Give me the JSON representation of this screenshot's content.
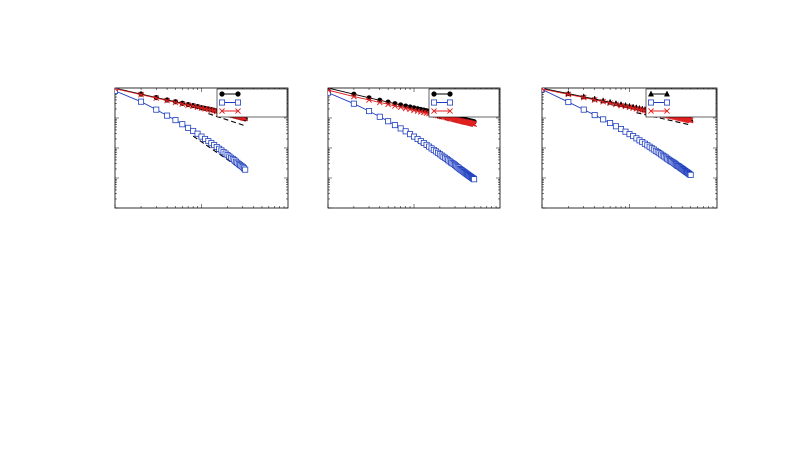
{
  "chart_data": [
    {
      "type": "line",
      "log_x": true,
      "log_y": true,
      "xlim": [
        1,
        100
      ],
      "ylim": [
        0.0001,
        1
      ],
      "grid": false,
      "legend": "top-right",
      "series": [
        {
          "marker": "circle",
          "color": "#000000",
          "x": [
            1,
            2,
            3,
            4,
            5,
            6,
            7,
            8,
            9,
            10,
            11,
            12,
            13,
            14,
            15,
            16,
            17,
            18,
            19,
            20,
            21,
            22,
            23,
            24,
            25,
            26,
            27,
            28,
            29,
            30,
            31,
            32
          ],
          "y": [
            0.98,
            0.63,
            0.48,
            0.4,
            0.35,
            0.31,
            0.28,
            0.26,
            0.24,
            0.22,
            0.21,
            0.2,
            0.19,
            0.18,
            0.17,
            0.16,
            0.155,
            0.148,
            0.142,
            0.136,
            0.131,
            0.126,
            0.122,
            0.118,
            0.114,
            0.111,
            0.108,
            0.105,
            0.102,
            0.099,
            0.097,
            0.094
          ]
        },
        {
          "marker": "square",
          "color": "#1f3fbf",
          "x": [
            1,
            2,
            3,
            4,
            5,
            6,
            7,
            8,
            9,
            10,
            11,
            12,
            13,
            14,
            15,
            16,
            17,
            18,
            19,
            20,
            21,
            22,
            23,
            24,
            25,
            26,
            27,
            28,
            29,
            30,
            31,
            32
          ],
          "y": [
            0.8,
            0.35,
            0.19,
            0.12,
            0.085,
            0.062,
            0.047,
            0.037,
            0.03,
            0.024,
            0.02,
            0.017,
            0.0145,
            0.0125,
            0.0108,
            0.0094,
            0.0083,
            0.0073,
            0.0065,
            0.0058,
            0.0052,
            0.0047,
            0.0043,
            0.0039,
            0.0035,
            0.0032,
            0.0029,
            0.0027,
            0.0025,
            0.0023,
            0.0021,
            0.0019
          ]
        },
        {
          "marker": "x",
          "color": "#e02020",
          "x": [
            1,
            2,
            3,
            4,
            5,
            6,
            7,
            8,
            9,
            10,
            11,
            12,
            13,
            14,
            15,
            16,
            17,
            18,
            19,
            20,
            21,
            22,
            23,
            24,
            25,
            26,
            27,
            28,
            29,
            30,
            31,
            32
          ],
          "y": [
            0.95,
            0.6,
            0.46,
            0.38,
            0.33,
            0.295,
            0.268,
            0.247,
            0.23,
            0.215,
            0.203,
            0.192,
            0.182,
            0.174,
            0.166,
            0.159,
            0.153,
            0.147,
            0.142,
            0.137,
            0.132,
            0.128,
            0.124,
            0.12,
            0.117,
            0.114,
            0.111,
            0.108,
            0.105,
            0.102,
            0.1,
            0.097
          ]
        }
      ],
      "guides": [
        {
          "x": [
            12,
            32
          ],
          "y": [
            0.14,
            0.055
          ]
        },
        {
          "x": [
            8,
            32
          ],
          "y": [
            0.025,
            0.0016
          ]
        }
      ]
    },
    {
      "type": "line",
      "log_x": true,
      "log_y": true,
      "xlim": [
        1,
        100
      ],
      "ylim": [
        0.0001,
        1
      ],
      "grid": false,
      "legend": "top-right",
      "series": [
        {
          "marker": "circle",
          "color": "#000000",
          "x": [
            1,
            2,
            3,
            4,
            5,
            6,
            7,
            8,
            9,
            10,
            11,
            12,
            13,
            14,
            15,
            16,
            17,
            18,
            19,
            20,
            21,
            22,
            23,
            24,
            25,
            26,
            27,
            28,
            29,
            30,
            31,
            32,
            33,
            34,
            35,
            36,
            37,
            38,
            39,
            40,
            41,
            42,
            43,
            44,
            45,
            46,
            47,
            48,
            49,
            50
          ],
          "y": [
            1.0,
            0.62,
            0.47,
            0.39,
            0.34,
            0.3,
            0.272,
            0.25,
            0.232,
            0.217,
            0.204,
            0.193,
            0.183,
            0.175,
            0.167,
            0.16,
            0.154,
            0.148,
            0.143,
            0.138,
            0.134,
            0.13,
            0.126,
            0.122,
            0.119,
            0.116,
            0.113,
            0.11,
            0.108,
            0.105,
            0.103,
            0.101,
            0.099,
            0.097,
            0.095,
            0.093,
            0.092,
            0.09,
            0.088,
            0.087,
            0.086,
            0.084,
            0.083,
            0.082,
            0.08,
            0.079,
            0.078,
            0.077,
            0.076,
            0.075
          ]
        },
        {
          "marker": "square",
          "color": "#1f3fbf",
          "x": [
            1,
            2,
            3,
            4,
            5,
            6,
            7,
            8,
            9,
            10,
            11,
            12,
            13,
            14,
            15,
            16,
            17,
            18,
            19,
            20,
            21,
            22,
            23,
            24,
            25,
            26,
            27,
            28,
            29,
            30,
            31,
            32,
            33,
            34,
            35,
            36,
            37,
            38,
            39,
            40,
            41,
            42,
            43,
            44,
            45,
            46,
            47,
            48,
            49,
            50
          ],
          "y": [
            0.7,
            0.3,
            0.17,
            0.11,
            0.078,
            0.058,
            0.045,
            0.036,
            0.029,
            0.024,
            0.02,
            0.017,
            0.0147,
            0.0127,
            0.0111,
            0.0097,
            0.0086,
            0.0077,
            0.0069,
            0.0062,
            0.0056,
            0.0051,
            0.0047,
            0.0043,
            0.0039,
            0.0036,
            0.0033,
            0.0031,
            0.0029,
            0.0027,
            0.0025,
            0.0023,
            0.0022,
            0.002,
            0.0019,
            0.0018,
            0.0017,
            0.0016,
            0.00152,
            0.00144,
            0.00137,
            0.0013,
            0.00124,
            0.00118,
            0.00113,
            0.00108,
            0.00103,
            0.00099,
            0.00095,
            0.00091
          ]
        },
        {
          "marker": "x",
          "color": "#e02020",
          "x": [
            1,
            2,
            3,
            4,
            5,
            6,
            7,
            8,
            9,
            10,
            11,
            12,
            13,
            14,
            15,
            16,
            17,
            18,
            19,
            20,
            21,
            22,
            23,
            24,
            25,
            26,
            27,
            28,
            29,
            30,
            31,
            32,
            33,
            34,
            35,
            36,
            37,
            38,
            39,
            40,
            41,
            42,
            43,
            44,
            45,
            46,
            47,
            48,
            49,
            50
          ],
          "y": [
            0.85,
            0.52,
            0.4,
            0.33,
            0.285,
            0.252,
            0.228,
            0.209,
            0.194,
            0.181,
            0.17,
            0.161,
            0.153,
            0.146,
            0.14,
            0.134,
            0.129,
            0.124,
            0.12,
            0.116,
            0.112,
            0.109,
            0.106,
            0.103,
            0.1,
            0.097,
            0.095,
            0.093,
            0.091,
            0.089,
            0.087,
            0.085,
            0.083,
            0.081,
            0.08,
            0.078,
            0.077,
            0.075,
            0.074,
            0.073,
            0.072,
            0.071,
            0.07,
            0.069,
            0.068,
            0.067,
            0.066,
            0.065,
            0.064,
            0.063
          ]
        }
      ],
      "guides": [
        {
          "x": [
            15,
            50
          ],
          "y": [
            0.12,
            0.052
          ]
        },
        {
          "x": [
            11,
            45
          ],
          "y": [
            0.016,
            0.0011
          ]
        }
      ]
    },
    {
      "type": "line",
      "log_x": true,
      "log_y": true,
      "xlim": [
        1,
        100
      ],
      "ylim": [
        0.0001,
        1
      ],
      "grid": false,
      "legend": "top-right",
      "series": [
        {
          "marker": "triangle",
          "color": "#000000",
          "x": [
            1,
            2,
            3,
            4,
            5,
            6,
            7,
            8,
            9,
            10,
            11,
            12,
            13,
            14,
            15,
            16,
            17,
            18,
            19,
            20,
            21,
            22,
            23,
            24,
            25,
            26,
            27,
            28,
            29,
            30,
            31,
            32,
            33,
            34,
            35,
            36,
            37,
            38,
            39,
            40,
            41,
            42,
            43,
            44,
            45,
            46,
            47,
            48,
            49,
            50
          ],
          "y": [
            0.98,
            0.65,
            0.51,
            0.43,
            0.375,
            0.335,
            0.305,
            0.281,
            0.262,
            0.246,
            0.232,
            0.22,
            0.209,
            0.2,
            0.192,
            0.184,
            0.178,
            0.172,
            0.166,
            0.161,
            0.156,
            0.152,
            0.148,
            0.144,
            0.14,
            0.137,
            0.134,
            0.131,
            0.128,
            0.125,
            0.123,
            0.12,
            0.118,
            0.116,
            0.114,
            0.112,
            0.11,
            0.108,
            0.106,
            0.105,
            0.103,
            0.101,
            0.1,
            0.099,
            0.097,
            0.096,
            0.095,
            0.093,
            0.092,
            0.091
          ]
        },
        {
          "marker": "square",
          "color": "#1f3fbf",
          "x": [
            1,
            2,
            3,
            4,
            5,
            6,
            7,
            8,
            9,
            10,
            11,
            12,
            13,
            14,
            15,
            16,
            17,
            18,
            19,
            20,
            21,
            22,
            23,
            24,
            25,
            26,
            27,
            28,
            29,
            30,
            31,
            32,
            33,
            34,
            35,
            36,
            37,
            38,
            39,
            40,
            41,
            42,
            43,
            44,
            45,
            46,
            47,
            48,
            49,
            50
          ],
          "y": [
            0.9,
            0.34,
            0.19,
            0.125,
            0.09,
            0.068,
            0.053,
            0.043,
            0.035,
            0.029,
            0.025,
            0.021,
            0.018,
            0.0158,
            0.0139,
            0.0123,
            0.011,
            0.0098,
            0.0089,
            0.008,
            0.0073,
            0.0067,
            0.0061,
            0.0056,
            0.0052,
            0.0048,
            0.0044,
            0.0041,
            0.0038,
            0.0036,
            0.0034,
            0.0032,
            0.003,
            0.0028,
            0.0026,
            0.0025,
            0.0024,
            0.00225,
            0.00213,
            0.00202,
            0.00192,
            0.00182,
            0.00173,
            0.00165,
            0.00158,
            0.00151,
            0.00144,
            0.00138,
            0.00132,
            0.00127
          ]
        },
        {
          "marker": "x",
          "color": "#e02020",
          "x": [
            1,
            2,
            3,
            4,
            5,
            6,
            7,
            8,
            9,
            10,
            11,
            12,
            13,
            14,
            15,
            16,
            17,
            18,
            19,
            20,
            21,
            22,
            23,
            24,
            25,
            26,
            27,
            28,
            29,
            30,
            31,
            32,
            33,
            34,
            35,
            36,
            37,
            38,
            39,
            40,
            41,
            42,
            43,
            44,
            45,
            46,
            47,
            48,
            49,
            50
          ],
          "y": [
            0.93,
            0.61,
            0.48,
            0.4,
            0.35,
            0.312,
            0.283,
            0.26,
            0.242,
            0.227,
            0.214,
            0.203,
            0.193,
            0.184,
            0.176,
            0.169,
            0.163,
            0.157,
            0.152,
            0.147,
            0.143,
            0.139,
            0.135,
            0.131,
            0.128,
            0.125,
            0.122,
            0.119,
            0.116,
            0.114,
            0.112,
            0.11,
            0.108,
            0.106,
            0.104,
            0.102,
            0.1,
            0.098,
            0.097,
            0.095,
            0.094,
            0.092,
            0.091,
            0.09,
            0.089,
            0.087,
            0.086,
            0.085,
            0.084,
            0.083
          ]
        }
      ],
      "guides": [
        {
          "x": [
            12,
            48
          ],
          "y": [
            0.15,
            0.06
          ]
        },
        {
          "x": [
            10,
            45
          ],
          "y": [
            0.03,
            0.0017
          ]
        }
      ]
    }
  ]
}
